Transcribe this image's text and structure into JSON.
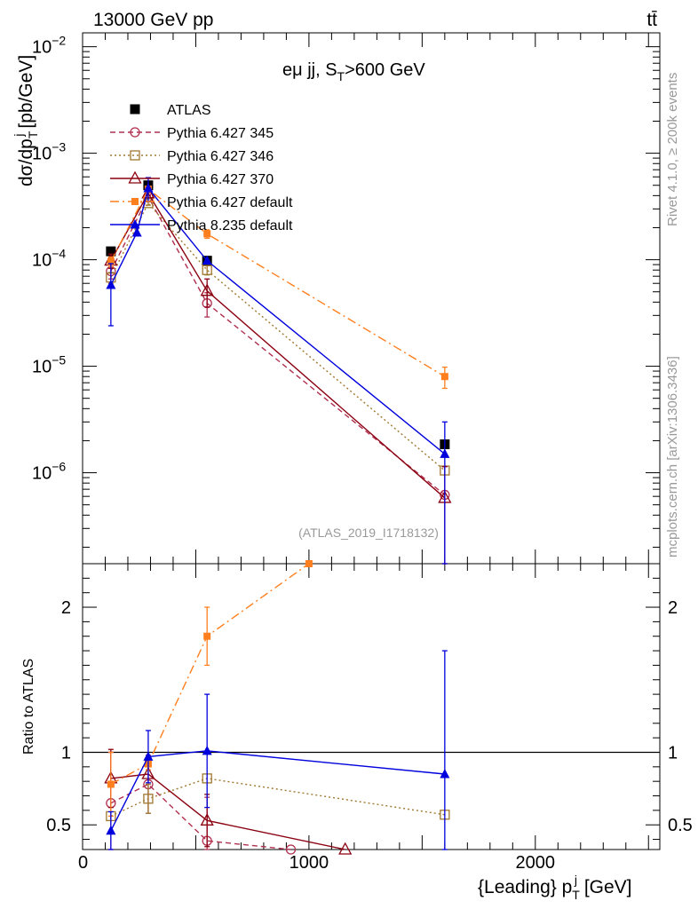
{
  "header": {
    "energy_label": "13000 GeV pp",
    "process_label": "tt̄"
  },
  "side_texts": {
    "rivet": "Rivet 4.1.0, ≥ 200k events",
    "mcplots": "mcplots.cern.ch [arXiv:1306.3436]"
  },
  "analysis_id": "(ATLAS_2019_I1718132)",
  "chart_data": [
    {
      "type": "line",
      "panel": "main",
      "title": "eμ jj, S_T>600 GeV",
      "title_parts": {
        "base": "eμ jj, S",
        "sub": "T",
        "rest": ">600 GeV"
      },
      "ylabel": "dσ/dp_T^j [pb/GeV]",
      "ylabel_parts": {
        "base": "dσ/dp",
        "sub": "T",
        "sup": "j",
        "rest": " [pb/GeV]"
      },
      "yscale": "log",
      "xlim": [
        0,
        2550
      ],
      "ylim": [
        1.4e-07,
        0.0135
      ],
      "ytick_labels": [
        {
          "value": 1e-06,
          "base": "10",
          "exp": "−6"
        },
        {
          "value": 1e-05,
          "base": "10",
          "exp": "−5"
        },
        {
          "value": 0.0001,
          "base": "10",
          "exp": "−4"
        },
        {
          "value": 0.001,
          "base": "10",
          "exp": "−3"
        },
        {
          "value": 0.01,
          "base": "10",
          "exp": "−2"
        }
      ],
      "legend_position": "top-left",
      "series": [
        {
          "name": "ATLAS",
          "color": "#000000",
          "marker": "square-filled",
          "line": "none",
          "x": [
            125,
            290,
            550,
            1600
          ],
          "y": [
            0.00012,
            0.0005,
            9.8e-05,
            1.85e-06
          ],
          "err": [
            0,
            0,
            0,
            0
          ]
        },
        {
          "name": "Pythia 6.427 345",
          "color": "#b03050",
          "marker": "circle-open",
          "line": "dashed",
          "x": [
            125,
            290,
            550,
            1600
          ],
          "y": [
            7.8e-05,
            0.00039,
            3.9e-05,
            6.2e-07
          ],
          "err": [
            1.2e-05,
            1.5e-05,
            1e-05,
            0
          ]
        },
        {
          "name": "Pythia 6.427 346",
          "color": "#a07830",
          "marker": "square-open",
          "line": "dotted",
          "x": [
            125,
            290,
            550,
            1600
          ],
          "y": [
            6.8e-05,
            0.00034,
            8e-05,
            1.05e-06
          ],
          "err": [
            8e-06,
            1.5e-05,
            8e-06,
            0
          ]
        },
        {
          "name": "Pythia 6.427 370",
          "color": "#8b0010",
          "marker": "triangle-open",
          "line": "solid",
          "x": [
            125,
            290,
            550,
            1600
          ],
          "y": [
            9.8e-05,
            0.00042,
            5.1e-05,
            5.8e-07
          ],
          "err": [
            1.5e-05,
            1.5e-05,
            1.5e-05,
            5.6e-07
          ]
        },
        {
          "name": "Pythia 6.427 default",
          "color": "#ff7f1e",
          "marker": "square-filled-small",
          "line": "dashdot",
          "x": [
            125,
            290,
            550,
            1600
          ],
          "y": [
            9.6e-05,
            0.00046,
            0.000175,
            8e-06
          ],
          "err": [
            1e-05,
            1.5e-05,
            1.6e-05,
            1.8e-06
          ]
        },
        {
          "name": "Pythia 8.235 default",
          "color": "#0000dd",
          "marker": "triangle-filled",
          "line": "solid",
          "x": [
            125,
            240,
            290,
            550,
            1600
          ],
          "y": [
            5.8e-05,
            0.00018,
            0.00047,
            9.8e-05,
            1.5e-06
          ],
          "err": [
            3.4e-05,
            0,
            0.00012,
            0,
            1.5e-06
          ]
        }
      ]
    },
    {
      "type": "line",
      "panel": "ratio",
      "ylabel": "Ratio to ATLAS",
      "xlabel": "{Leading} p_T^j [GeV]",
      "xlabel_parts": {
        "base": "{Leading} p",
        "sub": "T",
        "sup": "j",
        "rest": " [GeV]"
      },
      "xlim": [
        0,
        2550
      ],
      "ylim": [
        0.33,
        2.3
      ],
      "xtick_labels": [
        "0",
        "1000",
        "2000"
      ],
      "xtick_values": [
        0,
        1000,
        2000
      ],
      "ytick_labels": [
        "0.5",
        "1",
        "2"
      ],
      "ytick_values": [
        0.5,
        1,
        2
      ],
      "reference_line": 1,
      "series": [
        {
          "name": "Pythia 6.427 345",
          "color": "#b03050",
          "marker": "circle-open",
          "line": "dashed",
          "x": [
            125,
            290,
            550,
            920
          ],
          "y": [
            0.65,
            0.78,
            0.39,
            0.33
          ],
          "err": [
            0.35,
            0.2,
            0.3,
            0
          ]
        },
        {
          "name": "Pythia 6.427 346",
          "color": "#a07830",
          "marker": "square-open",
          "line": "dotted",
          "x": [
            125,
            290,
            550,
            1600
          ],
          "y": [
            0.56,
            0.68,
            0.82,
            0.57
          ],
          "err": [
            0.0,
            0.1,
            0.0,
            0.0
          ]
        },
        {
          "name": "Pythia 6.427 370",
          "color": "#8b0010",
          "marker": "triangle-open",
          "line": "solid",
          "x": [
            125,
            290,
            550,
            1160
          ],
          "y": [
            0.82,
            0.85,
            0.53,
            0.33
          ],
          "err": [
            0.2,
            0.0,
            0.18,
            0
          ]
        },
        {
          "name": "Pythia 6.427 default",
          "color": "#ff7f1e",
          "marker": "square-filled-small",
          "line": "dashdot",
          "x": [
            125,
            290,
            550,
            1000
          ],
          "y": [
            0.78,
            0.92,
            1.8,
            2.3
          ],
          "err": [
            0.22,
            0.04,
            0.2,
            0
          ]
        },
        {
          "name": "Pythia 8.235 default",
          "color": "#0000dd",
          "marker": "triangle-filled",
          "line": "solid",
          "x": [
            125,
            290,
            550,
            1600
          ],
          "y": [
            0.46,
            0.97,
            1.01,
            0.85
          ],
          "err": [
            0.13,
            0.18,
            0.39,
            0.85
          ]
        }
      ]
    }
  ]
}
